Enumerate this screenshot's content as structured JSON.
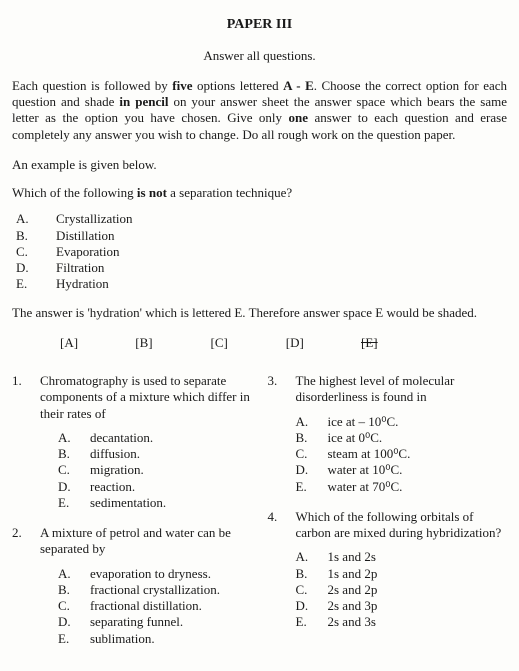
{
  "title": "PAPER III",
  "subtitle": "Answer all questions.",
  "instructions_parts": {
    "p1": "Each question is followed by ",
    "p2": "five",
    "p3": " options lettered ",
    "p4": "A - E",
    "p5": ". Choose the correct option for each question and shade ",
    "p6": "in pencil",
    "p7": " on your answer sheet the answer space which bears the same letter as the option you have chosen. Give only ",
    "p8": "one",
    "p9": " answer to each question and erase completely any answer you wish to change. Do all rough work on the question paper."
  },
  "example_intro": "An example is given below.",
  "example_question_pre": "Which of the following ",
  "example_question_bold": "is not",
  "example_question_post": " a separation technique?",
  "example_options": [
    {
      "letter": "A.",
      "text": "Crystallization"
    },
    {
      "letter": "B.",
      "text": "Distillation"
    },
    {
      "letter": "C.",
      "text": "Evaporation"
    },
    {
      "letter": "D.",
      "text": "Filtration"
    },
    {
      "letter": "E.",
      "text": "Hydration"
    }
  ],
  "answer_line": "The answer is 'hydration' which is lettered E. Therefore answer space E would be shaded.",
  "brackets": {
    "a": "[A]",
    "b": "[B]",
    "c": "[C]",
    "d": "[D]",
    "e": "[E]"
  },
  "q1": {
    "num": "1.",
    "stem": "Chromatography is used to separate components of a mixture which differ in their rates of",
    "opts": [
      {
        "letter": "A.",
        "text": "decantation."
      },
      {
        "letter": "B.",
        "text": "diffusion."
      },
      {
        "letter": "C.",
        "text": "migration."
      },
      {
        "letter": "D.",
        "text": "reaction."
      },
      {
        "letter": "E.",
        "text": "sedimentation."
      }
    ]
  },
  "q2": {
    "num": "2.",
    "stem": "A mixture of petrol and water can be separated by",
    "opts": [
      {
        "letter": "A.",
        "text": "evaporation to dryness."
      },
      {
        "letter": "B.",
        "text": "fractional crystallization."
      },
      {
        "letter": "C.",
        "text": "fractional distillation."
      },
      {
        "letter": "D.",
        "text": "separating funnel."
      },
      {
        "letter": "E.",
        "text": "sublimation."
      }
    ]
  },
  "q3": {
    "num": "3.",
    "stem": "The highest level of molecular disorderliness is found in",
    "opts": [
      {
        "letter": "A.",
        "text": "ice at – 10⁰C."
      },
      {
        "letter": "B.",
        "text": "ice at 0⁰C."
      },
      {
        "letter": "C.",
        "text": "steam at 100⁰C."
      },
      {
        "letter": "D.",
        "text": "water at 10⁰C."
      },
      {
        "letter": "E.",
        "text": "water at 70⁰C."
      }
    ]
  },
  "q4": {
    "num": "4.",
    "stem": "Which of the following orbitals of carbon are mixed during hybridization?",
    "opts": [
      {
        "letter": "A.",
        "text": "1s and 2s"
      },
      {
        "letter": "B.",
        "text": "1s and 2p"
      },
      {
        "letter": "C.",
        "text": "2s and 2p"
      },
      {
        "letter": "D.",
        "text": "2s and 3p"
      },
      {
        "letter": "E.",
        "text": "2s and 3s"
      }
    ]
  }
}
